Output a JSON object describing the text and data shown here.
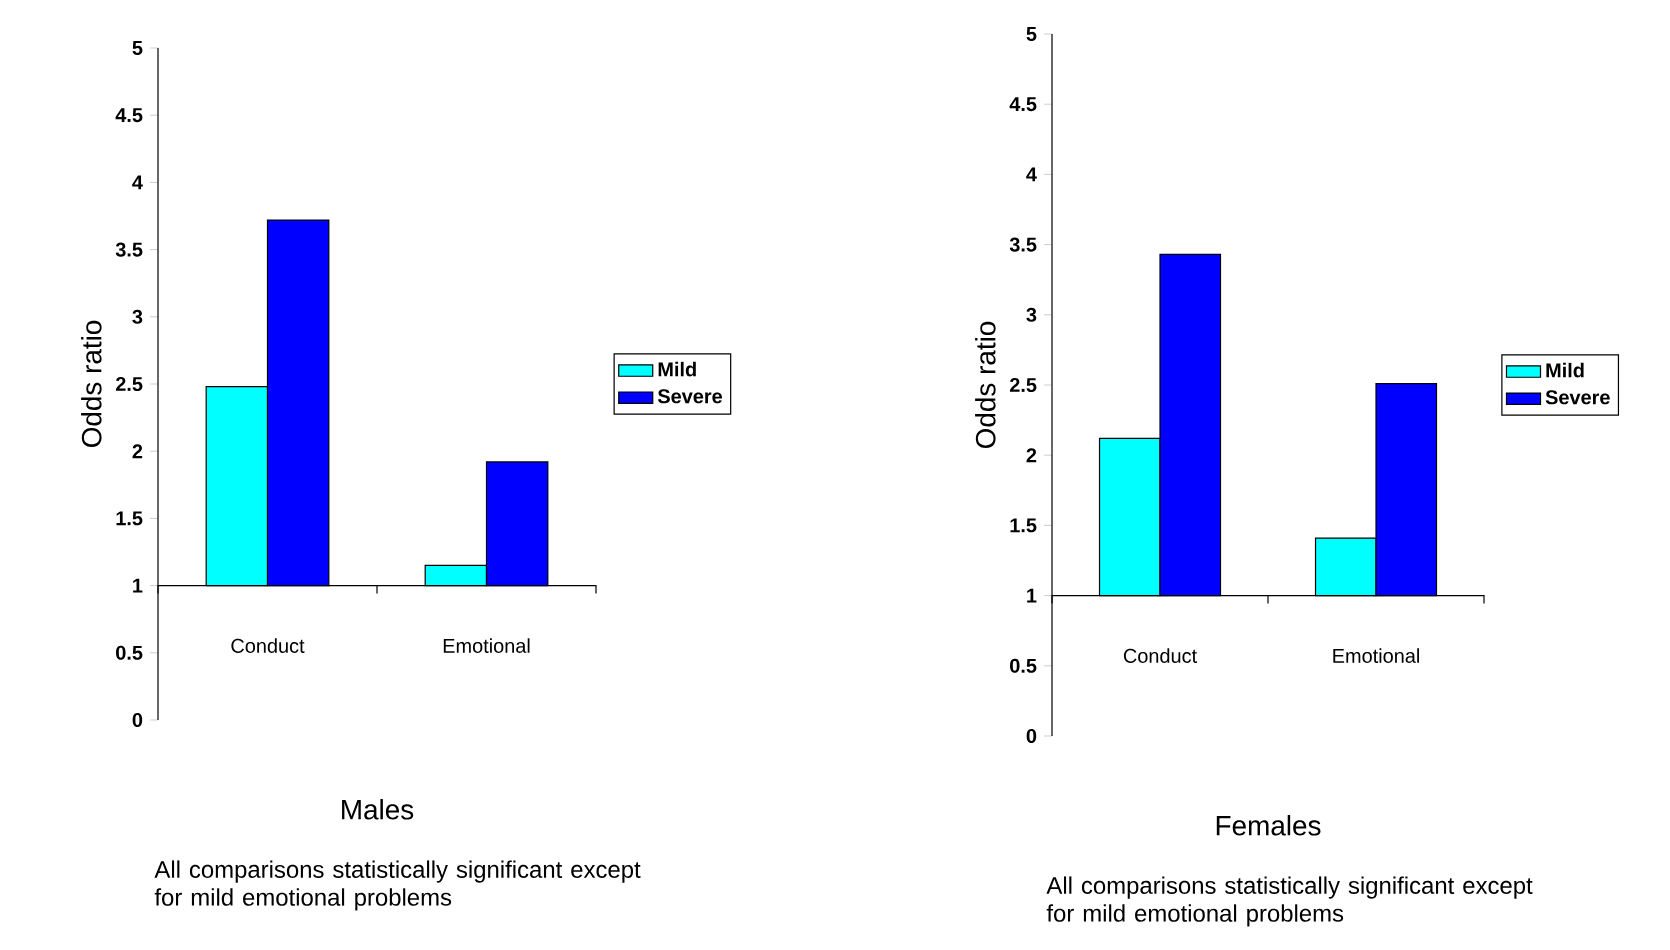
{
  "chart_data": [
    {
      "type": "bar",
      "title": "Males",
      "ylabel": "Odds ratio",
      "categories": [
        "Conduct",
        "Emotional"
      ],
      "series": [
        {
          "name": "Mild",
          "color": "#00ffff",
          "base": [
            1,
            1
          ],
          "values": [
            1.48,
            0.15
          ]
        },
        {
          "name": "Severe",
          "color": "#0000ff",
          "base": [
            1,
            1
          ],
          "values": [
            2.72,
            0.92
          ]
        }
      ],
      "ylim": [
        0,
        5
      ],
      "yticks": [
        0,
        0.5,
        1,
        1.5,
        2,
        2.5,
        3,
        3.5,
        4,
        4.5,
        5
      ],
      "legend": "right",
      "annotations": [
        "All comparisons statistically significant except for mild emotional problems"
      ]
    },
    {
      "type": "bar",
      "title": "Females",
      "ylabel": "Odds ratio",
      "categories": [
        "Conduct",
        "Emotional"
      ],
      "series": [
        {
          "name": "Mild",
          "color": "#00ffff",
          "base": [
            1,
            1
          ],
          "values": [
            1.12,
            0.41
          ]
        },
        {
          "name": "Severe",
          "color": "#0000ff",
          "base": [
            1,
            1
          ],
          "values": [
            2.43,
            1.51
          ]
        }
      ],
      "ylim": [
        0,
        5
      ],
      "yticks": [
        0,
        0.5,
        1,
        1.5,
        2,
        2.5,
        3,
        3.5,
        4,
        4.5,
        5
      ],
      "legend": "right",
      "annotations": [
        "All comparisons statistically significant except for mild emotional problems"
      ]
    }
  ]
}
